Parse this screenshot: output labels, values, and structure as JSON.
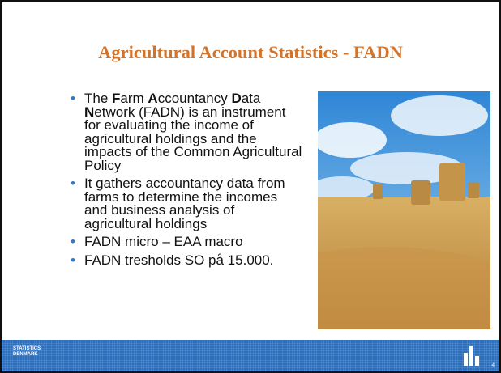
{
  "slide": {
    "title": "Agricultural Account Statistics - FADN",
    "bullets": [
      {
        "runs": [
          {
            "text": "The ",
            "bold": false
          },
          {
            "text": "F",
            "bold": true
          },
          {
            "text": "arm ",
            "bold": false
          },
          {
            "text": "A",
            "bold": true
          },
          {
            "text": "ccountancy ",
            "bold": false
          },
          {
            "text": "D",
            "bold": true
          },
          {
            "text": "ata ",
            "bold": false
          },
          {
            "text": "N",
            "bold": true
          },
          {
            "text": "etwork (FADN) is an instrument for evaluating the income of agricultural holdings and the impacts of the Common Agricultural Policy",
            "bold": false
          }
        ]
      },
      {
        "runs": [
          {
            "text": "It gathers accountancy data from farms to determine the incomes and business analysis of agricultural holdings",
            "bold": false
          }
        ]
      },
      {
        "runs": [
          {
            "text": "FADN micro – EAA macro",
            "bold": false
          }
        ]
      },
      {
        "runs": [
          {
            "text": "FADN tresholds SO på 15.000.",
            "bold": false
          }
        ]
      }
    ],
    "footer": {
      "logo": "STATISTICS DENMARK",
      "page_number": "4"
    }
  }
}
